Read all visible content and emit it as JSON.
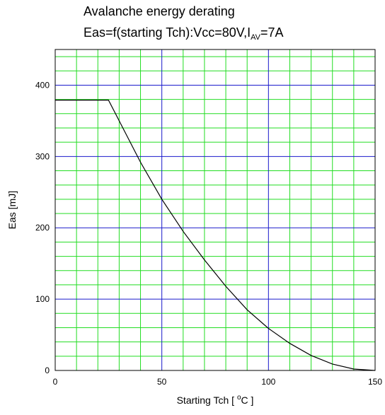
{
  "chart_data": {
    "type": "line",
    "title": "Avalanche energy derating",
    "subtitle": {
      "prefix": "Eas=f(starting Tch):Vcc=80V,I",
      "subscript": "AV",
      "suffix": "=7A"
    },
    "xlabel": {
      "prefix": "Starting Tch [ ",
      "superscript": "o",
      "suffix": "C ]"
    },
    "ylabel": "Eas [mJ]",
    "xlim": [
      0,
      150
    ],
    "ylim": [
      0,
      450
    ],
    "x_ticks": [
      0,
      50,
      100,
      150
    ],
    "y_ticks": [
      0,
      100,
      200,
      300,
      400
    ],
    "x_ticks_display": [
      "0",
      "50",
      "100",
      "150"
    ],
    "y_ticks_display": [
      "0",
      "100",
      "200",
      "300",
      "400"
    ],
    "grid": {
      "major_color": "#1a1acc",
      "minor_color": "#22dd22",
      "x_minor_step": 10,
      "y_minor_step": 20
    },
    "series": [
      {
        "color": "#000000",
        "x": [
          0,
          25,
          30,
          40,
          50,
          60,
          70,
          80,
          90,
          100,
          110,
          120,
          130,
          140,
          150
        ],
        "y": [
          379,
          379,
          350,
          292,
          240,
          195,
          155,
          118,
          85,
          59,
          38,
          21,
          9,
          2,
          0
        ]
      }
    ]
  }
}
